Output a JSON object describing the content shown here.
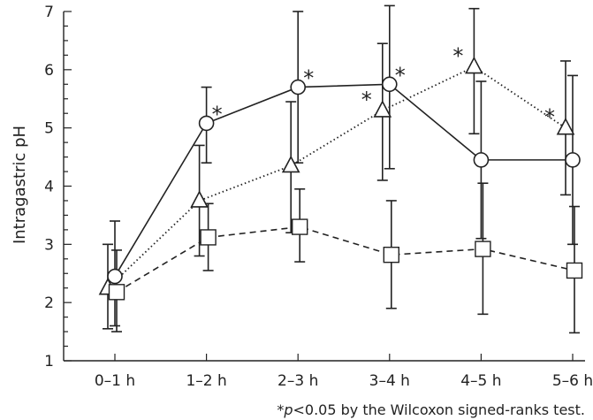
{
  "chart_data": {
    "type": "line",
    "title": "",
    "xlabel": "",
    "ylabel": "Intragastric pH",
    "ylim": [
      1,
      7
    ],
    "y_ticks": [
      1,
      2,
      3,
      4,
      5,
      6,
      7
    ],
    "categories": [
      "0–1 h",
      "1–2 h",
      "2–3 h",
      "3–4 h",
      "4–5 h",
      "5–6 h"
    ],
    "series": [
      {
        "marker": "circle",
        "line_style": "solid",
        "values": [
          2.45,
          5.08,
          5.7,
          5.75,
          4.45,
          4.45
        ],
        "error_upper": [
          3.4,
          5.7,
          7.0,
          7.1,
          5.8,
          5.9
        ],
        "error_lower": [
          1.6,
          4.4,
          4.4,
          4.3,
          3.1,
          3.0
        ],
        "significant": [
          false,
          true,
          true,
          true,
          false,
          false
        ]
      },
      {
        "marker": "triangle",
        "line_style": "dotted",
        "values": [
          2.25,
          3.75,
          4.35,
          5.3,
          6.05,
          5.0
        ],
        "error_upper": [
          3.0,
          4.7,
          5.45,
          6.45,
          7.05,
          6.15
        ],
        "error_lower": [
          1.55,
          2.8,
          3.2,
          4.1,
          4.9,
          3.85
        ],
        "significant": [
          false,
          false,
          false,
          true,
          true,
          true
        ]
      },
      {
        "marker": "square",
        "line_style": "dashed",
        "values": [
          2.18,
          3.12,
          3.3,
          2.82,
          2.92,
          2.55
        ],
        "error_upper": [
          2.9,
          3.7,
          3.95,
          3.75,
          4.05,
          3.65
        ],
        "error_lower": [
          1.5,
          2.55,
          2.7,
          1.9,
          1.8,
          1.48
        ],
        "significant": [
          false,
          false,
          false,
          false,
          false,
          false
        ]
      }
    ],
    "significance_marker": "*",
    "footnote": {
      "star": "*",
      "p": "p",
      "rest": "<0.05 by the Wilcoxon signed-ranks test."
    },
    "grid": false,
    "legend": "none"
  }
}
